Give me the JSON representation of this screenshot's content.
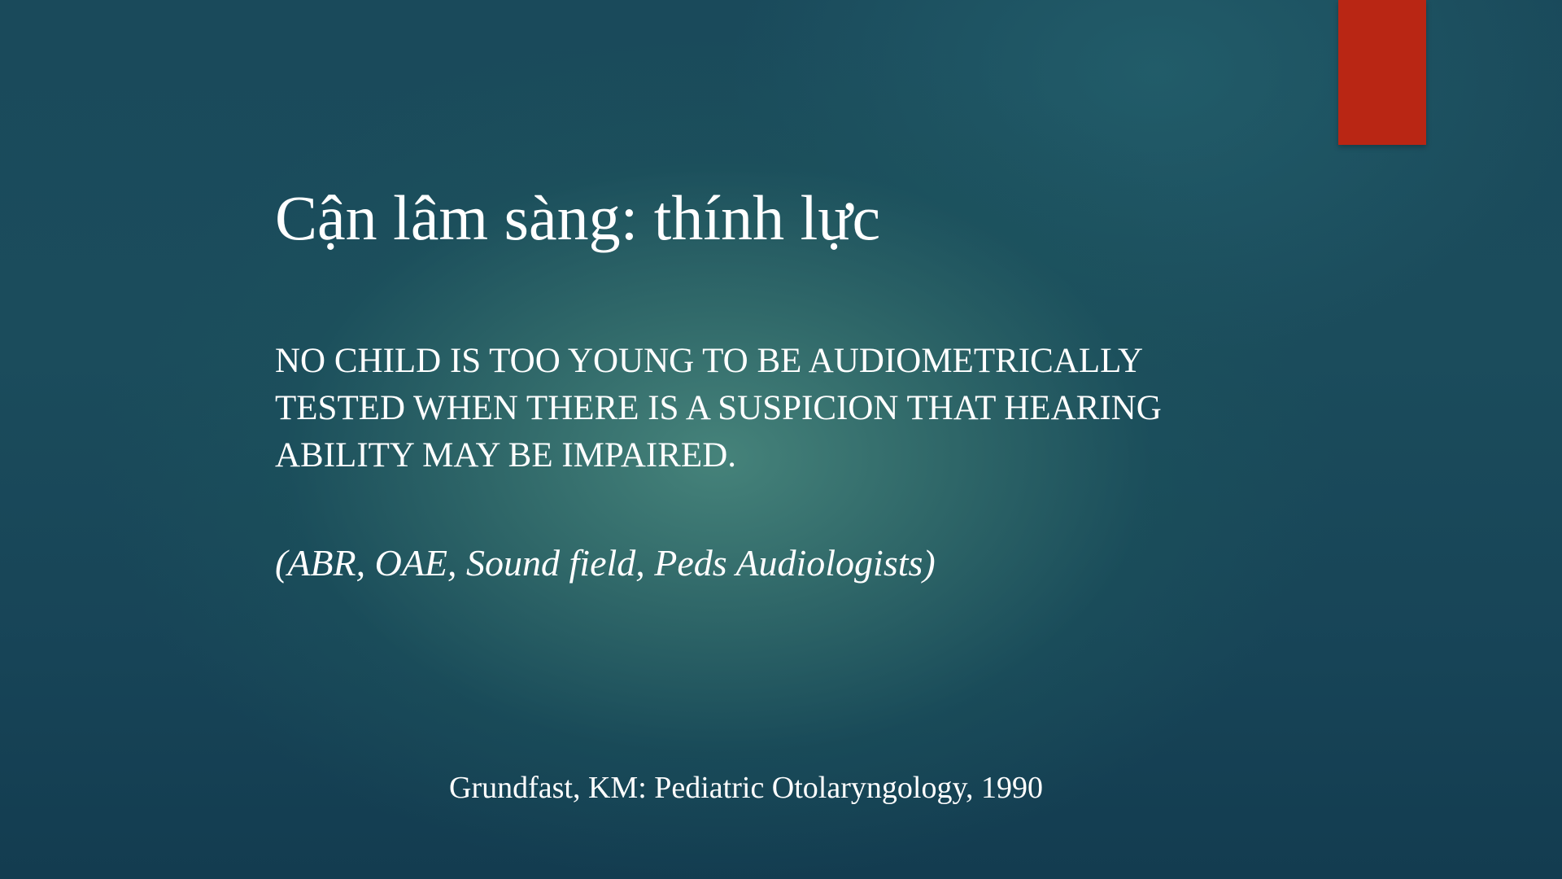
{
  "slide": {
    "title": "Cận lâm sàng: thính lực",
    "body": "NO CHILD IS TOO YOUNG TO BE AUDIOMETRICALLY TESTED WHEN THERE IS A SUSPICION THAT HEARING ABILITY MAY BE IMPAIRED.",
    "subtitle": "(ABR, OAE, Sound field, Peds Audiologists)",
    "citation": "Grundfast, KM: Pediatric Otolaryngology, 1990"
  },
  "colors": {
    "background": "#1b4c5c",
    "accent": "#b92614",
    "text": "#ffffff"
  }
}
